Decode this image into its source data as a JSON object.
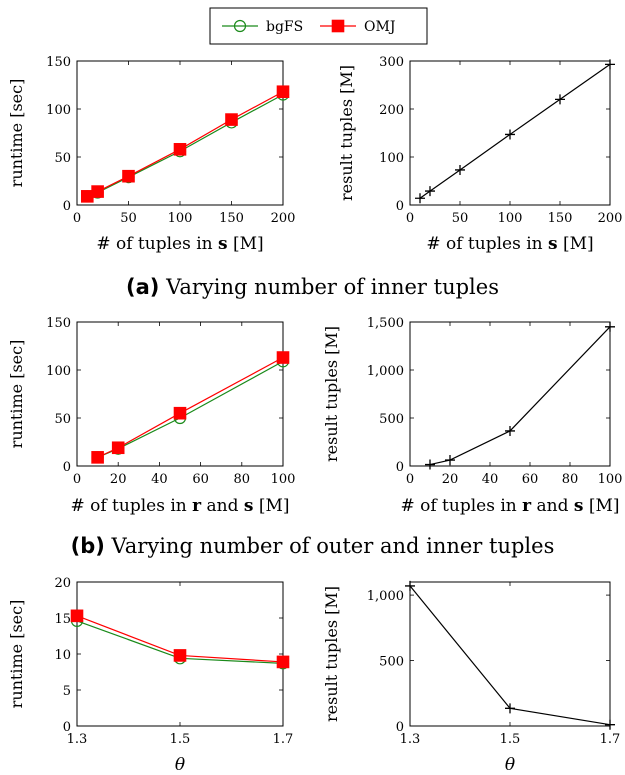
{
  "legend": {
    "items": [
      {
        "name": "bgFS",
        "color": "#1a8a1a",
        "marker": "circle"
      },
      {
        "name": "OMJ",
        "color": "#ff0000",
        "marker": "square"
      }
    ]
  },
  "captions": {
    "a": {
      "tag": "(a)",
      "text": "Varying number of inner tuples"
    },
    "b": {
      "tag": "(b)",
      "text": "Varying number of outer and inner tuples"
    }
  },
  "chart_data": [
    {
      "id": "a-left",
      "type": "line",
      "xlabel_parts": [
        "# of tuples in ",
        "s",
        " [M]"
      ],
      "ylabel": "runtime [sec]",
      "xlim": [
        0,
        200
      ],
      "ylim": [
        0,
        150
      ],
      "xticks": [
        0,
        50,
        100,
        150,
        200
      ],
      "xtick_labels": [
        "0",
        "50",
        "100",
        "150",
        "200"
      ],
      "yticks": [
        0,
        50,
        100,
        150
      ],
      "ytick_labels": [
        "0",
        "50",
        "100",
        "150"
      ],
      "grid": false,
      "series": [
        {
          "name": "bgFS",
          "color": "#1a8a1a",
          "marker": "circle",
          "x": [
            10,
            20,
            50,
            100,
            150,
            200
          ],
          "y": [
            9,
            13,
            29,
            56,
            86,
            115
          ]
        },
        {
          "name": "OMJ",
          "color": "#ff0000",
          "marker": "square",
          "x": [
            10,
            20,
            50,
            100,
            150,
            200
          ],
          "y": [
            9,
            14,
            30,
            58,
            89,
            118
          ]
        }
      ]
    },
    {
      "id": "a-right",
      "type": "line",
      "xlabel_parts": [
        "# of tuples in ",
        "s",
        " [M]"
      ],
      "ylabel": "result tuples [M]",
      "xlim": [
        0,
        200
      ],
      "ylim": [
        0,
        300
      ],
      "xticks": [
        0,
        50,
        100,
        150,
        200
      ],
      "xtick_labels": [
        "0",
        "50",
        "100",
        "150",
        "200"
      ],
      "yticks": [
        0,
        100,
        200,
        300
      ],
      "ytick_labels": [
        "0",
        "100",
        "200",
        "300"
      ],
      "grid": false,
      "series": [
        {
          "color": "#000000",
          "marker": "plus",
          "x": [
            10,
            20,
            50,
            100,
            150,
            200
          ],
          "y": [
            14,
            29,
            73,
            147,
            220,
            293
          ]
        }
      ]
    },
    {
      "id": "b-left",
      "type": "line",
      "xlabel_parts": [
        "# of tuples in ",
        "r",
        " and ",
        "s",
        " [M]"
      ],
      "ylabel": "runtime [sec]",
      "xlim": [
        0,
        100
      ],
      "ylim": [
        0,
        150
      ],
      "xticks": [
        0,
        20,
        40,
        60,
        80,
        100
      ],
      "xtick_labels": [
        "0",
        "20",
        "40",
        "60",
        "80",
        "100"
      ],
      "yticks": [
        0,
        50,
        100,
        150
      ],
      "ytick_labels": [
        "0",
        "50",
        "100",
        "150"
      ],
      "grid": false,
      "series": [
        {
          "name": "bgFS",
          "color": "#1a8a1a",
          "marker": "circle",
          "x": [
            10,
            20,
            50,
            100
          ],
          "y": [
            9,
            18,
            50,
            109
          ]
        },
        {
          "name": "OMJ",
          "color": "#ff0000",
          "marker": "square",
          "x": [
            10,
            20,
            50,
            100
          ],
          "y": [
            9,
            19,
            55,
            113
          ]
        }
      ]
    },
    {
      "id": "b-right",
      "type": "line",
      "xlabel_parts": [
        "# of tuples in ",
        "r",
        " and ",
        "s",
        " [M]"
      ],
      "ylabel": "result tuples [M]",
      "xlim": [
        0,
        100
      ],
      "ylim": [
        0,
        1500
      ],
      "xticks": [
        0,
        20,
        40,
        60,
        80,
        100
      ],
      "xtick_labels": [
        "0",
        "20",
        "40",
        "60",
        "80",
        "100"
      ],
      "yticks": [
        0,
        500,
        1000,
        1500
      ],
      "ytick_labels": [
        "0",
        "500",
        "1,000",
        "1,500"
      ],
      "grid": false,
      "series": [
        {
          "color": "#000000",
          "marker": "plus",
          "x": [
            10,
            20,
            50,
            100
          ],
          "y": [
            15,
            62,
            365,
            1450
          ]
        }
      ]
    },
    {
      "id": "c-left",
      "type": "line",
      "xlabel_parts": [
        "θ"
      ],
      "ylabel": "runtime [sec]",
      "xlim": [
        1.3,
        1.7
      ],
      "ylim": [
        0,
        20
      ],
      "xticks": [
        1.3,
        1.5,
        1.7
      ],
      "xtick_labels": [
        "1.3",
        "1.5",
        "1.7"
      ],
      "yticks": [
        0,
        5,
        10,
        15,
        20
      ],
      "ytick_labels": [
        "0",
        "5",
        "10",
        "15",
        "20"
      ],
      "grid": false,
      "series": [
        {
          "name": "bgFS",
          "color": "#1a8a1a",
          "marker": "circle",
          "x": [
            1.3,
            1.5,
            1.7
          ],
          "y": [
            14.6,
            9.4,
            8.7
          ]
        },
        {
          "name": "OMJ",
          "color": "#ff0000",
          "marker": "square",
          "x": [
            1.3,
            1.5,
            1.7
          ],
          "y": [
            15.3,
            9.8,
            8.9
          ]
        }
      ]
    },
    {
      "id": "c-right",
      "type": "line",
      "xlabel_parts": [
        "θ"
      ],
      "ylabel": "result tuples [M]",
      "xlim": [
        1.3,
        1.7
      ],
      "ylim": [
        0,
        1100
      ],
      "xticks": [
        1.3,
        1.5,
        1.7
      ],
      "xtick_labels": [
        "1.3",
        "1.5",
        "1.7"
      ],
      "yticks": [
        0,
        500,
        1000
      ],
      "ytick_labels": [
        "0",
        "500",
        "1,000"
      ],
      "grid": false,
      "series": [
        {
          "color": "#000000",
          "marker": "plus",
          "x": [
            1.3,
            1.5,
            1.7
          ],
          "y": [
            1070,
            135,
            10
          ]
        }
      ]
    }
  ]
}
